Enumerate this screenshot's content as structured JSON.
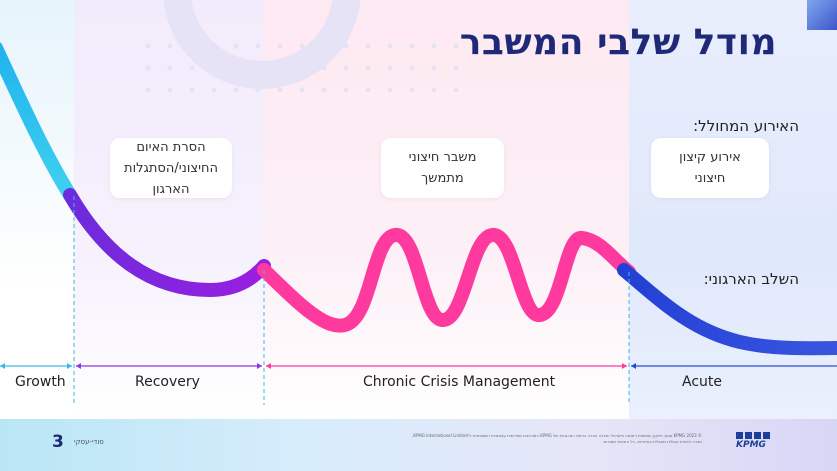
{
  "title": "מודל שלבי המשבר",
  "labels": {
    "event": "האירוע המחולל:",
    "stage": "השלב הארגוני:"
  },
  "cards": {
    "recovery": [
      "הסרת האיום",
      "החיצוני/הסתגלות",
      "הארגון"
    ],
    "chronic": [
      "משבר חיצוני",
      "מתמשך"
    ],
    "acute": [
      "אירוע קיצון",
      "חיצוני"
    ]
  },
  "stages": {
    "growth": "Growth",
    "recovery": "Recovery",
    "chronic": "Chronic Crisis Management",
    "acute": "Acute"
  },
  "footer": {
    "page_number": "3",
    "confidentiality": "סודי-עסקי",
    "legal": "© 2023 KPMG סומך חייקין, שותפות רשומה בישראל וחברה חברה ברשת הארגונית של KPMG המורכבת מפירמות עצמאיות המסונפות ל-KPMG International Limited, חברה פרטית אנגלית מוגבלת באחריות. כל הזכויות שמורות.",
    "logo": "KPMG"
  },
  "colors": {
    "title": "#1e2a78",
    "growth_curve": "#29b6e8",
    "recovery_curve": "#7a2be0",
    "chronic_curve": "#ff3fa0",
    "acute_curve": "#2b4bd6"
  }
}
